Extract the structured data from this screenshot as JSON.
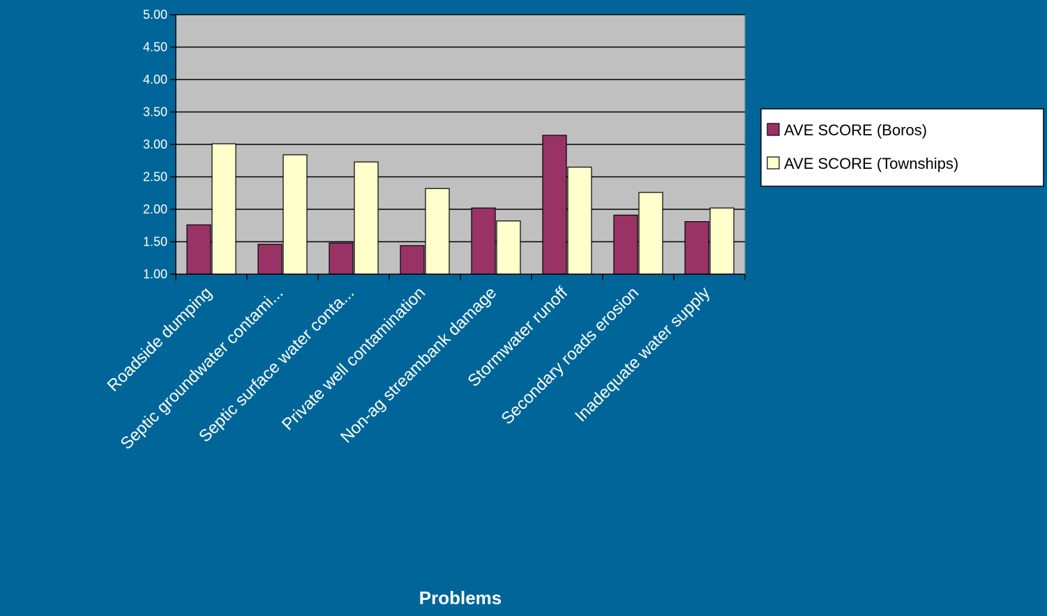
{
  "chart_data": {
    "type": "bar",
    "categories": [
      "Roadside dumping",
      "Septic groundwater contami...",
      "Septic surface water conta...",
      "Private well contamination",
      "Non-ag streambank damage",
      "Stormwater runoff",
      "Secondary roads erosion",
      "Inadequate water supply"
    ],
    "series": [
      {
        "name": "AVE SCORE (Boros)",
        "color": "#993366",
        "values": [
          1.76,
          1.46,
          1.48,
          1.44,
          2.02,
          3.14,
          1.91,
          1.81
        ]
      },
      {
        "name": "AVE SCORE (Townships)",
        "color": "#FFFFCC",
        "values": [
          3.01,
          2.84,
          2.73,
          2.32,
          1.82,
          2.65,
          2.26,
          2.02
        ]
      }
    ],
    "title": "",
    "xlabel": "Problems",
    "ylabel": "",
    "ylim": [
      1.0,
      5.0
    ],
    "yticks": [
      "1.00",
      "1.50",
      "2.00",
      "2.50",
      "3.00",
      "3.50",
      "4.00",
      "4.50",
      "5.00"
    ],
    "grid": true,
    "legend_position": "right",
    "plot_background": "#C0C0C0",
    "background": "#006699"
  }
}
